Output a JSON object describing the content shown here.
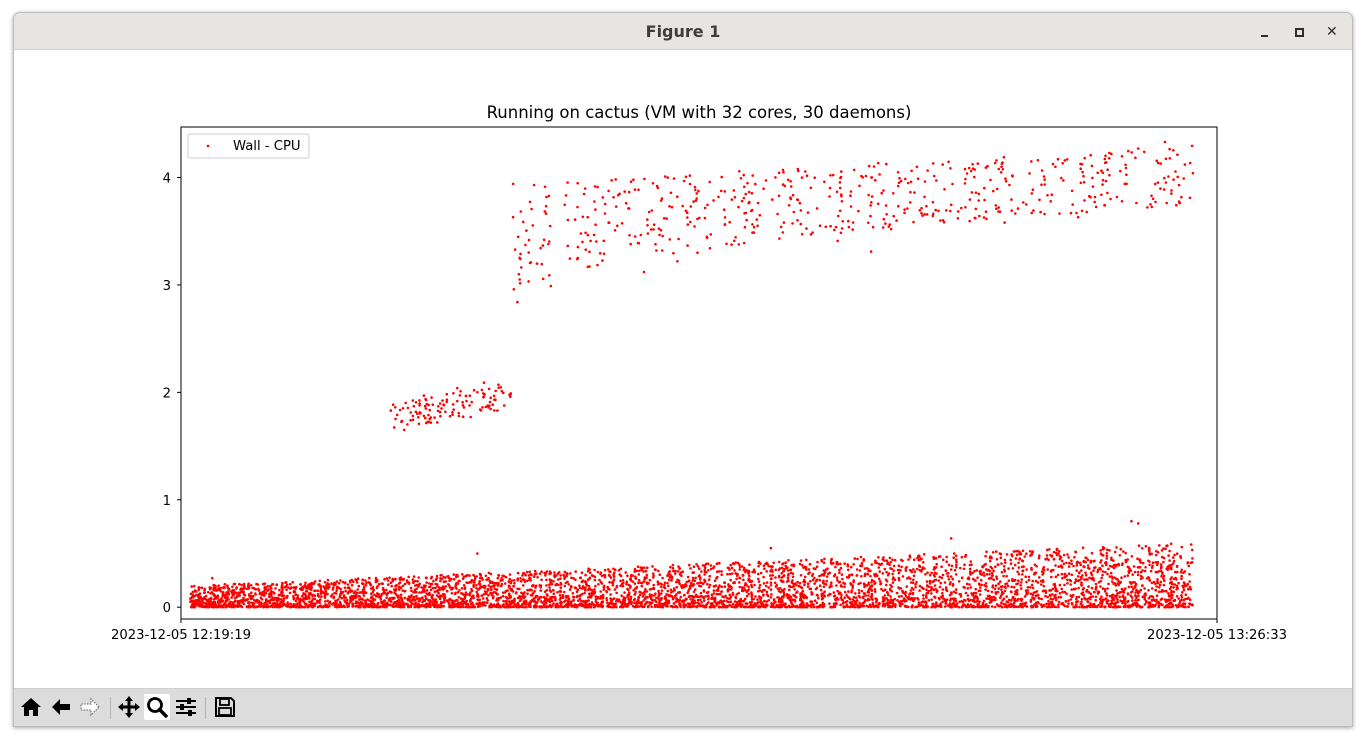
{
  "window": {
    "title": "Figure 1"
  },
  "toolbar": {
    "buttons": [
      {
        "name": "home-button",
        "icon": "home-icon"
      },
      {
        "name": "back-button",
        "icon": "back-arrow-icon"
      },
      {
        "name": "forward-button",
        "icon": "forward-arrow-icon"
      },
      {
        "name": "pan-button",
        "icon": "move-icon"
      },
      {
        "name": "zoom-button",
        "icon": "magnifier-icon",
        "active": true
      },
      {
        "name": "configure-subplots-button",
        "icon": "sliders-icon"
      },
      {
        "name": "save-button",
        "icon": "floppy-disk-icon"
      }
    ]
  },
  "chart_data": {
    "type": "scatter",
    "title": "Running on cactus (VM with 32 cores, 30 daemons)",
    "xlabel": "",
    "ylabel": "",
    "legend": {
      "entries": [
        "Wall - CPU"
      ],
      "placement": "upper-left"
    },
    "color": "#ff0000",
    "x_range": [
      "2023-12-05 12:19:19",
      "2023-12-05 13:26:33"
    ],
    "x_ticks": [
      "2023-12-05 12:19:19",
      "2023-12-05 13:26:33"
    ],
    "ylim": [
      -0.11,
      4.47
    ],
    "y_ticks": [
      0,
      1,
      2,
      3,
      4
    ],
    "grid": false,
    "series": [
      {
        "name": "Wall - CPU",
        "x_start": "2023-12-05 12:19:55",
        "x_end": "2023-12-05 13:24:59",
        "description_groups": [
          {
            "segment": "low band",
            "x_from": "2023-12-05 12:19:55",
            "x_to": "2023-12-05 13:24:59",
            "y_min": 0.0,
            "y_max_start": 0.2,
            "y_max_end": 0.6
          },
          {
            "segment": "cluster-2",
            "x_from": "2023-12-05 12:32:56",
            "x_to": "2023-12-05 12:40:43",
            "y_min": 1.65,
            "y_max": 2.1
          },
          {
            "segment": "upper band",
            "x_from": "2023-12-05 12:40:52",
            "x_to": "2023-12-05 13:24:59",
            "y_min_start": 2.85,
            "y_min_end": 3.75,
            "y_max_start": 3.95,
            "y_max_end": 4.3
          }
        ],
        "points": [
          [
            "2023-12-05 12:32:56",
            1.83
          ],
          [
            "2023-12-05 12:33:48",
            1.65
          ],
          [
            "2023-12-05 12:34:13",
            1.74
          ],
          [
            "2023-12-05 12:34:39",
            1.8
          ],
          [
            "2023-12-05 12:35:05",
            1.97
          ],
          [
            "2023-12-05 12:35:57",
            1.72
          ],
          [
            "2023-12-05 12:36:23",
            1.88
          ],
          [
            "2023-12-05 12:37:15",
            2.04
          ],
          [
            "2023-12-05 12:37:41",
            1.86
          ],
          [
            "2023-12-05 12:38:07",
            1.77
          ],
          [
            "2023-12-05 12:38:59",
            2.09
          ],
          [
            "2023-12-05 12:39:25",
            1.95
          ],
          [
            "2023-12-05 12:39:51",
            1.83
          ],
          [
            "2023-12-05 12:40:43",
            1.99
          ],
          [
            "2023-12-05 12:40:52",
            3.94
          ],
          [
            "2023-12-05 12:41:09",
            2.84
          ],
          [
            "2023-12-05 12:41:18",
            3.05
          ],
          [
            "2023-12-05 12:42:01",
            3.21
          ],
          [
            "2023-12-05 12:42:53",
            3.42
          ],
          [
            "2023-12-05 12:43:19",
            2.99
          ],
          [
            "2023-12-05 12:45:02",
            3.24
          ],
          [
            "2023-12-05 12:45:54",
            3.41
          ],
          [
            "2023-12-05 12:46:46",
            3.29
          ],
          [
            "2023-12-05 12:47:38",
            3.55
          ],
          [
            "2023-12-05 12:48:30",
            3.38
          ],
          [
            "2023-12-05 12:49:22",
            3.12
          ],
          [
            "2023-12-05 12:50:40",
            3.62
          ],
          [
            "2023-12-05 12:51:32",
            3.22
          ],
          [
            "2023-12-05 12:52:50",
            3.3
          ],
          [
            "2023-12-05 12:53:42",
            3.47
          ],
          [
            "2023-12-05 12:54:34",
            3.7
          ],
          [
            "2023-12-05 12:55:52",
            3.39
          ],
          [
            "2023-12-05 12:56:44",
            3.55
          ],
          [
            "2023-12-05 12:58:02",
            3.66
          ],
          [
            "2023-12-05 12:58:54",
            3.8
          ],
          [
            "2023-12-05 13:00:12",
            3.47
          ],
          [
            "2023-12-05 13:01:04",
            3.96
          ],
          [
            "2023-12-05 13:01:56",
            3.41
          ],
          [
            "2023-12-05 13:02:48",
            3.87
          ],
          [
            "2023-12-05 13:04:06",
            3.31
          ],
          [
            "2023-12-05 13:05:24",
            3.52
          ],
          [
            "2023-12-05 13:06:16",
            3.67
          ],
          [
            "2023-12-05 13:06:42",
            3.96
          ],
          [
            "2023-12-05 13:07:34",
            3.82
          ],
          [
            "2023-12-05 13:08:52",
            3.89
          ],
          [
            "2023-12-05 13:09:44",
            3.62
          ],
          [
            "2023-12-05 13:10:36",
            4.06
          ],
          [
            "2023-12-05 13:11:28",
            3.79
          ],
          [
            "2023-12-05 13:12:46",
            3.58
          ],
          [
            "2023-12-05 13:13:38",
            3.71
          ],
          [
            "2023-12-05 13:14:30",
            4.15
          ],
          [
            "2023-12-05 13:15:22",
            3.98
          ],
          [
            "2023-12-05 13:16:14",
            4.17
          ],
          [
            "2023-12-05 13:17:32",
            3.63
          ],
          [
            "2023-12-05 13:17:58",
            4.18
          ],
          [
            "2023-12-05 13:19:16",
            3.74
          ],
          [
            "2023-12-05 13:19:42",
            4.22
          ],
          [
            "2023-12-05 13:20:34",
            3.94
          ],
          [
            "2023-12-05 13:21:26",
            4.27
          ],
          [
            "2023-12-05 13:22:18",
            3.83
          ],
          [
            "2023-12-05 13:23:10",
            4.33
          ],
          [
            "2023-12-05 13:23:36",
            3.88
          ],
          [
            "2023-12-05 13:24:28",
            4.12
          ],
          [
            "2023-12-05 13:24:59",
            4.04
          ],
          [
            "2023-12-05 12:38:33",
            0.5
          ],
          [
            "2023-12-05 12:57:36",
            0.55
          ],
          [
            "2023-12-05 13:09:18",
            0.64
          ],
          [
            "2023-12-05 13:21:00",
            0.8
          ],
          [
            "2023-12-05 13:21:26",
            0.78
          ],
          [
            "2023-12-05 12:21:21",
            0.27
          ]
        ]
      }
    ]
  }
}
